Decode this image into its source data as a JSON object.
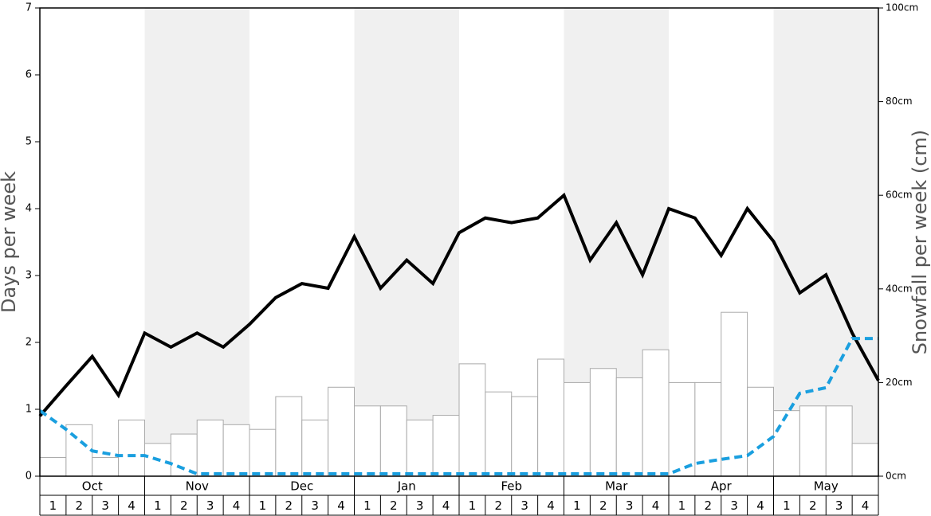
{
  "chart_data": {
    "type": "bar",
    "y_label": "Days per week",
    "y2_label": "Snowfall per week (cm)",
    "months": [
      "Oct",
      "Nov",
      "Dec",
      "Jan",
      "Feb",
      "Mar",
      "Apr",
      "May"
    ],
    "week_labels": [
      1,
      2,
      3,
      4
    ],
    "shade_color": "#f0f0f0",
    "ylim": [
      0,
      7
    ],
    "yticks": [
      0,
      1,
      2,
      3,
      4,
      5,
      6,
      7
    ],
    "y2lim": [
      0,
      100
    ],
    "y2ticks": [
      {
        "value": 0,
        "label": "0cm"
      },
      {
        "value": 20,
        "label": "20cm"
      },
      {
        "value": 40,
        "label": "40cm"
      },
      {
        "value": 60,
        "label": "60cm"
      },
      {
        "value": 80,
        "label": "80cm"
      },
      {
        "value": 100,
        "label": "100cm"
      }
    ],
    "bars": {
      "axis": "y2",
      "color": "#ffffff",
      "edge": "#aaaaaa",
      "values": [
        4,
        11,
        4,
        12,
        7,
        9,
        12,
        11,
        10,
        17,
        12,
        19,
        15,
        15,
        12,
        13,
        24,
        18,
        17,
        25,
        20,
        23,
        21,
        27,
        20,
        20,
        35,
        19,
        14,
        15,
        15,
        7
      ]
    },
    "lines": [
      {
        "axis": "y",
        "color": "#000000",
        "dashed": false,
        "values": [
          0.9,
          1.35,
          1.79,
          1.21,
          2.14,
          1.93,
          2.14,
          1.93,
          2.27,
          2.67,
          2.88,
          2.81,
          3.58,
          2.81,
          3.23,
          2.88,
          3.64,
          3.86,
          3.79,
          3.86,
          4.2,
          3.23,
          3.79,
          3.01,
          4.0,
          3.86,
          3.3,
          4.0,
          3.51,
          2.74,
          3.01,
          2.14,
          1.43
        ]
      },
      {
        "axis": "y2",
        "color": "#1a9fdf",
        "dashed": true,
        "values": [
          14,
          10,
          5.4,
          4.4,
          4.4,
          2.7,
          0.5,
          0.5,
          0.5,
          0.5,
          0.5,
          0.5,
          0.5,
          0.5,
          0.5,
          0.5,
          0.5,
          0.5,
          0.5,
          0.5,
          0.5,
          0.5,
          0.5,
          0.5,
          0.5,
          2.7,
          3.6,
          4.4,
          8.5,
          17.7,
          18.9,
          29.4,
          29.4
        ]
      }
    ]
  }
}
